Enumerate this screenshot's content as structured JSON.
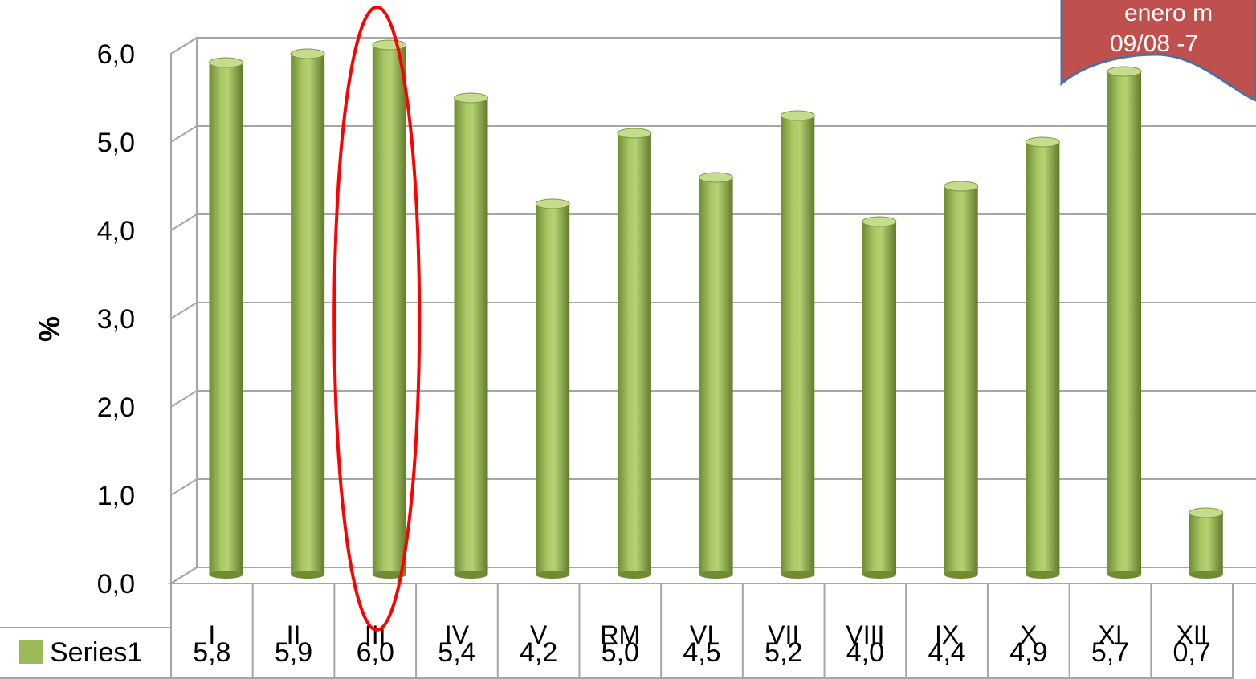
{
  "chart_data": {
    "type": "bar",
    "categories": [
      "I",
      "II",
      "III",
      "IV",
      "V",
      "RM",
      "VI",
      "VII",
      "VIII",
      "IX",
      "X",
      "XI",
      "XII"
    ],
    "series": [
      {
        "name": "Series1",
        "values": [
          5.8,
          5.9,
          6.0,
          5.4,
          4.2,
          5.0,
          4.5,
          5.2,
          4.0,
          4.4,
          4.9,
          5.7,
          0.7
        ]
      }
    ],
    "value_labels": [
      "5,8",
      "5,9",
      "6,0",
      "5,4",
      "4,2",
      "5,0",
      "4,5",
      "5,2",
      "4,0",
      "4,4",
      "4,9",
      "5,7",
      "0,7"
    ],
    "ylabel": "%",
    "ylim": [
      0,
      6
    ],
    "yticks": [
      "0,0",
      "1,0",
      "2,0",
      "3,0",
      "4,0",
      "5,0",
      "6,0"
    ],
    "grid": true,
    "data_table": true,
    "highlighted_category": "III",
    "callout_lines": [
      "enero m",
      "09/08 -7"
    ],
    "colors": {
      "bar": "#9bbb59",
      "bar_dark": "#5f7a2a",
      "highlight": "#ff0000",
      "callout": "#c0504d",
      "callout_border": "#4f6fa0"
    }
  }
}
